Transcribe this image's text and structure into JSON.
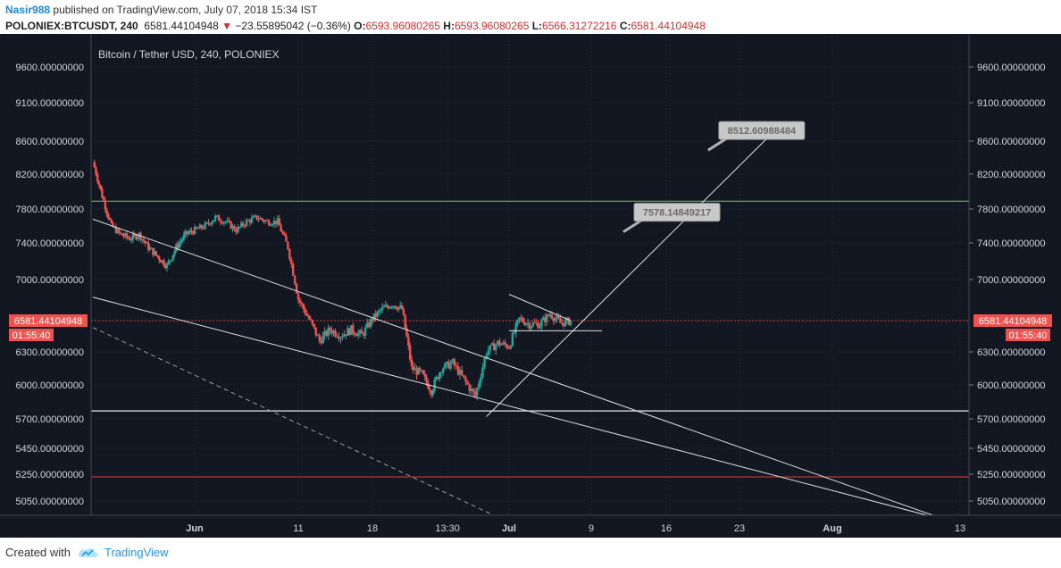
{
  "header": {
    "author": "Nasir988",
    "published_text": "published on TradingView.com, July 07, 2018 15:34 IST",
    "symbol": "POLONIEX:BTCUSDT, 240",
    "last": "6581.44104948",
    "change": "−23.55895042 (−0.36%)",
    "o_label": "O:",
    "o_value": "6593.96080265",
    "h_label": "H:",
    "h_value": "6593.96080265",
    "l_label": "L:",
    "l_value": "6566.31272216",
    "c_label": "C:",
    "c_value": "6581.44104948"
  },
  "footer": {
    "created_with": "Created with",
    "brand": "TradingView"
  },
  "colors": {
    "bg": "#131722",
    "up": "#26a69a",
    "down": "#ef5350",
    "grid": "#363c4e",
    "axis_text": "#d1d4dc",
    "line": "#e0e0e0",
    "green_level": "#8bc34a",
    "red_level": "#e53935",
    "price_badge": "#ef5350"
  },
  "chart_data": {
    "type": "candlestick",
    "title": "Bitcoin / Tether USD, 240, POLONIEX",
    "y_ticks": [
      9600,
      9100,
      8600,
      8200,
      7800,
      7400,
      7000,
      6300,
      6000,
      5700,
      5450,
      5250,
      5050
    ],
    "y_tick_labels": [
      "9600.00000000",
      "9100.00000000",
      "8600.00000000",
      "8200.00000000",
      "7800.00000000",
      "7400.00000000",
      "7000.00000000",
      "6300.00000000",
      "6000.00000000",
      "5700.00000000",
      "5450.00000000",
      "5250.00000000",
      "5050.00000000"
    ],
    "x_tick_labels": [
      "Jun",
      "11",
      "18",
      "13:30",
      "Jul",
      "9",
      "16",
      "23",
      "Aug",
      "13"
    ],
    "x_tick_dates": [
      "2018-06-01",
      "2018-06-11",
      "2018-06-18",
      "2018-06-25 13:30",
      "2018-07-01",
      "2018-07-09",
      "2018-07-16",
      "2018-07-23",
      "2018-08-01",
      "2018-08-13"
    ],
    "last_price": "6581.44104948",
    "countdown": "01:55:40",
    "annotations": [
      {
        "text": "8512.60988484",
        "anchor_date": "2018-07-20",
        "anchor_price": 8490
      },
      {
        "text": "7578.14849217",
        "anchor_date": "2018-07-12",
        "anchor_price": 7530
      }
    ],
    "horizontal_levels": [
      {
        "price": 7890,
        "color": "green"
      },
      {
        "price": 6581.44,
        "color": "red-dotted"
      },
      {
        "price": 5770,
        "color": "gray"
      },
      {
        "price": 5230,
        "color": "red"
      }
    ],
    "trendlines": [
      {
        "from": [
          "2018-05-21",
          7680
        ],
        "to": [
          "2018-08-12",
          4900
        ]
      },
      {
        "from": [
          "2018-05-21",
          6820
        ],
        "to": [
          "2018-08-12",
          4900
        ]
      },
      {
        "from": [
          "2018-05-21",
          6520
        ],
        "to": [
          "2018-07-01",
          4890
        ],
        "dashed": true
      },
      {
        "from": [
          "2018-06-29",
          5720
        ],
        "to": [
          "2018-07-26",
          8680
        ]
      },
      {
        "from": [
          "2018-07-01",
          6850
        ],
        "to": [
          "2018-07-07",
          6581
        ]
      },
      {
        "from": [
          "2018-07-01",
          6490
        ],
        "to": [
          "2018-07-10",
          6490
        ]
      }
    ],
    "candle_path": [
      [
        "2018-05-21",
        8350
      ],
      [
        "2018-05-22",
        7950
      ],
      [
        "2018-05-23",
        7600
      ],
      [
        "2018-05-24",
        7500
      ],
      [
        "2018-05-25",
        7450
      ],
      [
        "2018-05-26",
        7500
      ],
      [
        "2018-05-27",
        7350
      ],
      [
        "2018-05-28",
        7250
      ],
      [
        "2018-05-29",
        7150
      ],
      [
        "2018-05-30",
        7350
      ],
      [
        "2018-05-31",
        7500
      ],
      [
        "2018-06-01",
        7550
      ],
      [
        "2018-06-02",
        7600
      ],
      [
        "2018-06-03",
        7700
      ],
      [
        "2018-06-04",
        7650
      ],
      [
        "2018-06-05",
        7550
      ],
      [
        "2018-06-06",
        7650
      ],
      [
        "2018-06-07",
        7700
      ],
      [
        "2018-06-08",
        7650
      ],
      [
        "2018-06-09",
        7650
      ],
      [
        "2018-06-10",
        7350
      ],
      [
        "2018-06-11",
        6800
      ],
      [
        "2018-06-12",
        6600
      ],
      [
        "2018-06-13",
        6400
      ],
      [
        "2018-06-14",
        6500
      ],
      [
        "2018-06-15",
        6450
      ],
      [
        "2018-06-16",
        6500
      ],
      [
        "2018-06-17",
        6450
      ],
      [
        "2018-06-18",
        6600
      ],
      [
        "2018-06-19",
        6700
      ],
      [
        "2018-06-20",
        6750
      ],
      [
        "2018-06-21",
        6700
      ],
      [
        "2018-06-22",
        6150
      ],
      [
        "2018-06-23",
        6100
      ],
      [
        "2018-06-24",
        5950
      ],
      [
        "2018-06-25",
        6150
      ],
      [
        "2018-06-26",
        6200
      ],
      [
        "2018-06-27",
        6050
      ],
      [
        "2018-06-28",
        5900
      ],
      [
        "2018-06-29",
        6300
      ],
      [
        "2018-06-30",
        6380
      ],
      [
        "2018-07-01",
        6350
      ],
      [
        "2018-07-02",
        6600
      ],
      [
        "2018-07-03",
        6550
      ],
      [
        "2018-07-04",
        6550
      ],
      [
        "2018-07-05",
        6650
      ],
      [
        "2018-07-06",
        6560
      ],
      [
        "2018-07-07",
        6581
      ]
    ]
  }
}
